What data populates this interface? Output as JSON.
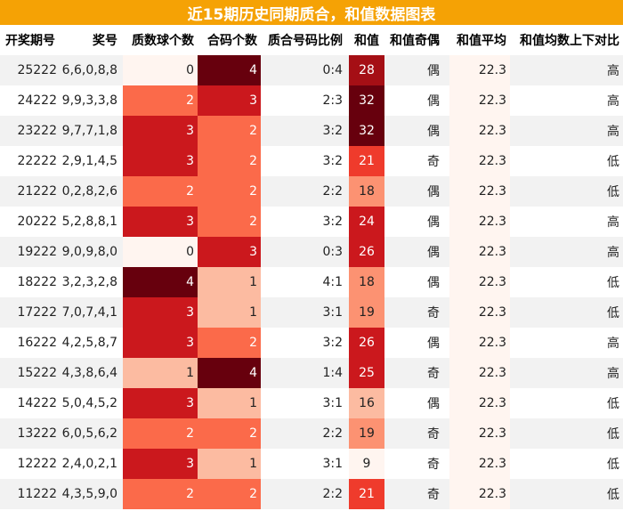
{
  "title": "近15期历史同期质合，和值数据图表",
  "columns": [
    "开奖期号",
    "奖号",
    "质数球个数",
    "合码个数",
    "质合号码比例",
    "和值",
    "和值奇偶",
    "和值平均",
    "和值均数上下对比"
  ],
  "rows": [
    {
      "issue": "25222",
      "numbers": "6,6,0,8,8",
      "primes": "0",
      "composites": "4",
      "ratio": "0:4",
      "sum": "28",
      "parity": "偶",
      "avg": "22.3",
      "cmp": "高"
    },
    {
      "issue": "24222",
      "numbers": "9,9,3,3,8",
      "primes": "2",
      "composites": "3",
      "ratio": "2:3",
      "sum": "32",
      "parity": "偶",
      "avg": "22.3",
      "cmp": "高"
    },
    {
      "issue": "23222",
      "numbers": "9,7,7,1,8",
      "primes": "3",
      "composites": "2",
      "ratio": "3:2",
      "sum": "32",
      "parity": "偶",
      "avg": "22.3",
      "cmp": "高"
    },
    {
      "issue": "22222",
      "numbers": "2,9,1,4,5",
      "primes": "3",
      "composites": "2",
      "ratio": "3:2",
      "sum": "21",
      "parity": "奇",
      "avg": "22.3",
      "cmp": "低"
    },
    {
      "issue": "21222",
      "numbers": "0,2,8,2,6",
      "primes": "2",
      "composites": "2",
      "ratio": "2:2",
      "sum": "18",
      "parity": "偶",
      "avg": "22.3",
      "cmp": "低"
    },
    {
      "issue": "20222",
      "numbers": "5,2,8,8,1",
      "primes": "3",
      "composites": "2",
      "ratio": "3:2",
      "sum": "24",
      "parity": "偶",
      "avg": "22.3",
      "cmp": "高"
    },
    {
      "issue": "19222",
      "numbers": "9,0,9,8,0",
      "primes": "0",
      "composites": "3",
      "ratio": "0:3",
      "sum": "26",
      "parity": "偶",
      "avg": "22.3",
      "cmp": "高"
    },
    {
      "issue": "18222",
      "numbers": "3,2,3,2,8",
      "primes": "4",
      "composites": "1",
      "ratio": "4:1",
      "sum": "18",
      "parity": "偶",
      "avg": "22.3",
      "cmp": "低"
    },
    {
      "issue": "17222",
      "numbers": "7,0,7,4,1",
      "primes": "3",
      "composites": "1",
      "ratio": "3:1",
      "sum": "19",
      "parity": "奇",
      "avg": "22.3",
      "cmp": "低"
    },
    {
      "issue": "16222",
      "numbers": "4,2,5,8,7",
      "primes": "3",
      "composites": "2",
      "ratio": "3:2",
      "sum": "26",
      "parity": "偶",
      "avg": "22.3",
      "cmp": "高"
    },
    {
      "issue": "15222",
      "numbers": "4,3,8,6,4",
      "primes": "1",
      "composites": "4",
      "ratio": "1:4",
      "sum": "25",
      "parity": "奇",
      "avg": "22.3",
      "cmp": "高"
    },
    {
      "issue": "14222",
      "numbers": "5,0,4,5,2",
      "primes": "3",
      "composites": "1",
      "ratio": "3:1",
      "sum": "16",
      "parity": "偶",
      "avg": "22.3",
      "cmp": "低"
    },
    {
      "issue": "13222",
      "numbers": "6,0,5,6,2",
      "primes": "2",
      "composites": "2",
      "ratio": "2:2",
      "sum": "19",
      "parity": "奇",
      "avg": "22.3",
      "cmp": "低"
    },
    {
      "issue": "12222",
      "numbers": "2,4,0,2,1",
      "primes": "3",
      "composites": "1",
      "ratio": "3:1",
      "sum": "9",
      "parity": "奇",
      "avg": "22.3",
      "cmp": "低"
    },
    {
      "issue": "11222",
      "numbers": "4,3,5,9,0",
      "primes": "2",
      "composites": "2",
      "ratio": "2:2",
      "sum": "21",
      "parity": "奇",
      "avg": "22.3",
      "cmp": "低"
    }
  ],
  "colors": {
    "title_bg": "#f5a205",
    "count_scale": {
      "0": "#fff5f0",
      "1": "#fcbba1",
      "2": "#fb6a4a",
      "3": "#cb181d",
      "4": "#67000d"
    },
    "avg_bg": "#fff5f0",
    "band": "#f2f2f2"
  }
}
